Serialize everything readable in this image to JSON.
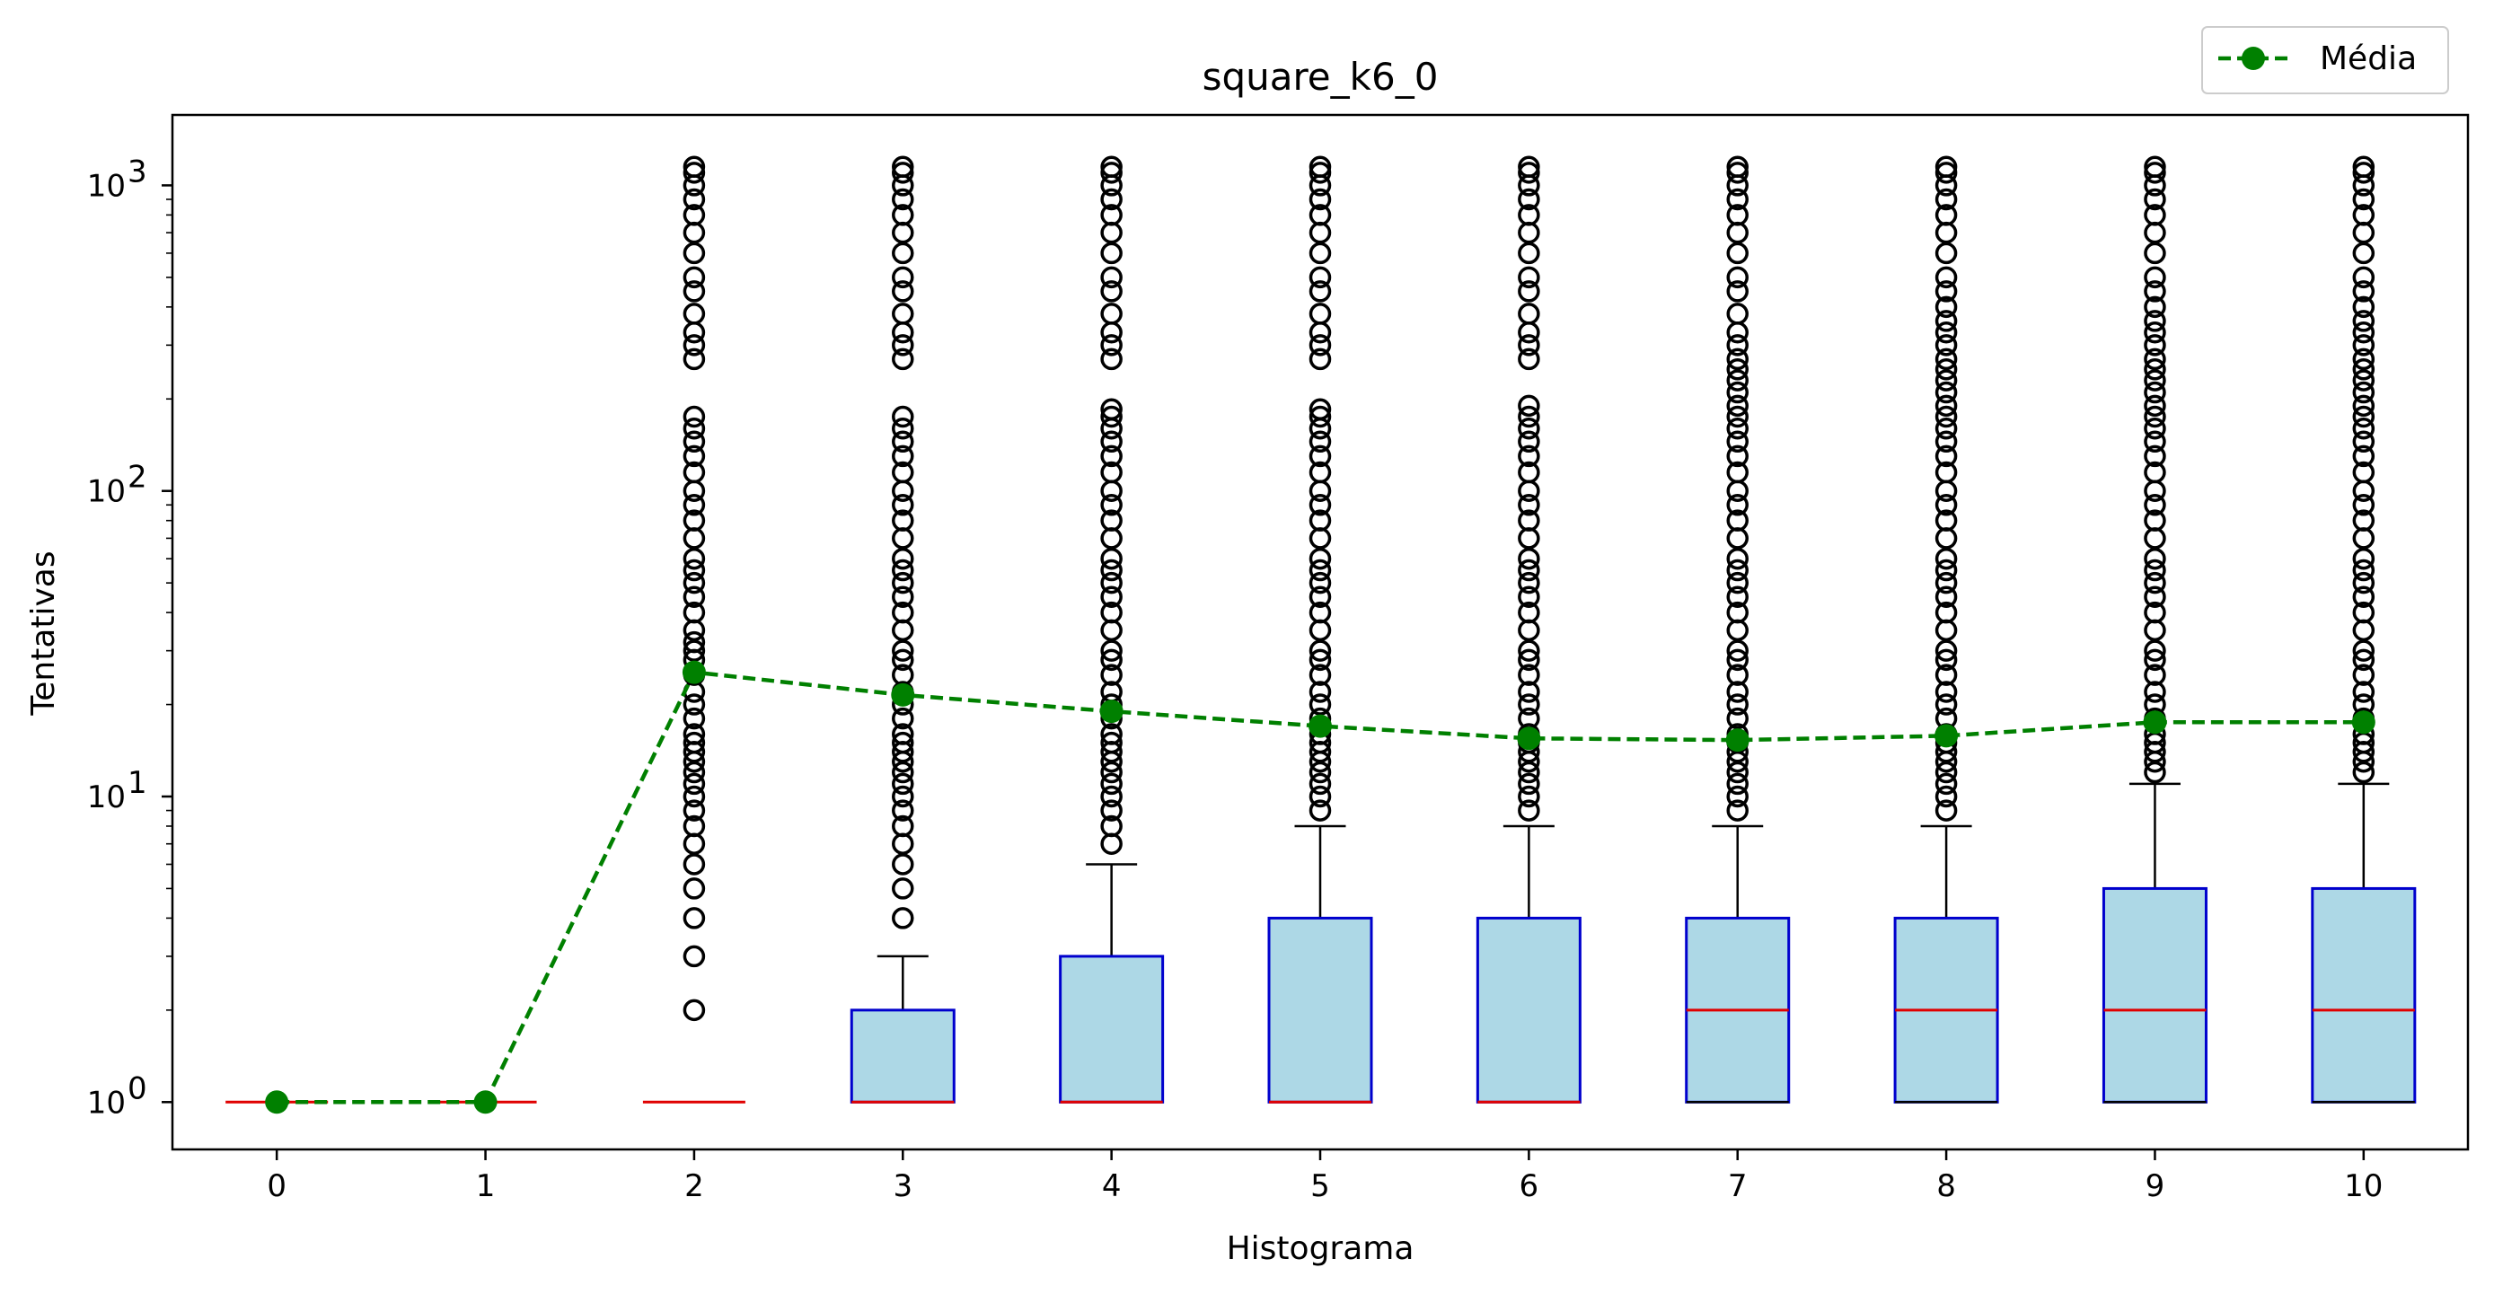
{
  "chart_data": {
    "type": "box",
    "title": "square_k6_0",
    "xlabel": "Histograma",
    "ylabel": "Tentativas",
    "yscale": "log",
    "ylim": [
      0.7,
      1700
    ],
    "xlim": [
      -0.5,
      10.5
    ],
    "categories": [
      "0",
      "1",
      "2",
      "3",
      "4",
      "5",
      "6",
      "7",
      "8",
      "9",
      "10"
    ],
    "y_ticks": [
      {
        "value": 1,
        "base": "10",
        "exp": "0"
      },
      {
        "value": 10,
        "base": "10",
        "exp": "1"
      },
      {
        "value": 100,
        "base": "10",
        "exp": "2"
      },
      {
        "value": 1000,
        "base": "10",
        "exp": "3"
      }
    ],
    "boxes": [
      {
        "q1": 1,
        "median": 1,
        "q3": 1,
        "whisker_low": 1,
        "whisker_high": 1,
        "outliers": []
      },
      {
        "q1": 1,
        "median": 1,
        "q3": 1,
        "whisker_low": 1,
        "whisker_high": 1,
        "outliers": []
      },
      {
        "q1": 1,
        "median": 1,
        "q3": 1,
        "whisker_low": 1,
        "whisker_high": 1,
        "outliers": [
          2,
          3,
          4,
          5,
          6,
          7,
          8,
          9,
          10,
          11,
          12,
          13,
          14,
          15,
          16,
          18,
          20,
          22,
          25,
          28,
          30,
          32,
          35,
          40,
          45,
          50,
          55,
          60,
          70,
          80,
          90,
          100,
          115,
          130,
          145,
          160,
          175,
          270,
          300,
          330,
          380,
          450,
          500,
          600,
          700,
          800,
          900,
          1000,
          1100,
          1150
        ]
      },
      {
        "q1": 1,
        "median": 1,
        "q3": 2,
        "whisker_low": 1,
        "whisker_high": 3,
        "outliers": [
          4,
          5,
          6,
          7,
          8,
          9,
          10,
          11,
          12,
          13,
          14,
          15,
          16,
          18,
          20,
          22,
          25,
          28,
          30,
          35,
          40,
          45,
          50,
          55,
          60,
          70,
          80,
          90,
          100,
          115,
          130,
          145,
          160,
          175,
          270,
          300,
          330,
          380,
          450,
          500,
          600,
          700,
          800,
          900,
          1000,
          1100,
          1150
        ]
      },
      {
        "q1": 1,
        "median": 1,
        "q3": 3,
        "whisker_low": 1,
        "whisker_high": 6,
        "outliers": [
          7,
          8,
          9,
          10,
          11,
          12,
          13,
          14,
          15,
          16,
          18,
          20,
          22,
          25,
          28,
          30,
          35,
          40,
          45,
          50,
          55,
          60,
          70,
          80,
          90,
          100,
          115,
          130,
          145,
          160,
          175,
          185,
          270,
          300,
          330,
          380,
          450,
          500,
          600,
          700,
          800,
          900,
          1000,
          1100,
          1150
        ]
      },
      {
        "q1": 1,
        "median": 1,
        "q3": 4,
        "whisker_low": 1,
        "whisker_high": 8,
        "outliers": [
          9,
          10,
          11,
          12,
          13,
          14,
          15,
          16,
          18,
          20,
          22,
          25,
          28,
          30,
          35,
          40,
          45,
          50,
          55,
          60,
          70,
          80,
          90,
          100,
          115,
          130,
          145,
          160,
          175,
          185,
          270,
          300,
          330,
          380,
          450,
          500,
          600,
          700,
          800,
          900,
          1000,
          1100,
          1150
        ]
      },
      {
        "q1": 1,
        "median": 1,
        "q3": 4,
        "whisker_low": 1,
        "whisker_high": 8,
        "outliers": [
          9,
          10,
          11,
          12,
          13,
          14,
          15,
          16,
          18,
          20,
          22,
          25,
          28,
          30,
          35,
          40,
          45,
          50,
          55,
          60,
          70,
          80,
          90,
          100,
          115,
          130,
          145,
          160,
          175,
          190,
          270,
          300,
          330,
          380,
          450,
          500,
          600,
          700,
          800,
          900,
          1000,
          1100,
          1150
        ]
      },
      {
        "q1": 1,
        "median": 2,
        "q3": 4,
        "whisker_low": 1,
        "whisker_high": 8,
        "outliers": [
          9,
          10,
          11,
          12,
          13,
          14,
          15,
          16,
          18,
          20,
          22,
          25,
          28,
          30,
          35,
          40,
          45,
          50,
          55,
          60,
          70,
          80,
          90,
          100,
          115,
          130,
          145,
          160,
          175,
          190,
          210,
          230,
          250,
          270,
          300,
          330,
          380,
          450,
          500,
          600,
          700,
          800,
          900,
          1000,
          1100,
          1150
        ]
      },
      {
        "q1": 1,
        "median": 2,
        "q3": 4,
        "whisker_low": 1,
        "whisker_high": 8,
        "outliers": [
          9,
          10,
          11,
          12,
          13,
          14,
          15,
          16,
          18,
          20,
          22,
          25,
          28,
          30,
          35,
          40,
          45,
          50,
          55,
          60,
          70,
          80,
          90,
          100,
          115,
          130,
          145,
          160,
          175,
          190,
          210,
          230,
          250,
          270,
          300,
          330,
          360,
          400,
          450,
          500,
          600,
          700,
          800,
          900,
          1000,
          1100,
          1150
        ]
      },
      {
        "q1": 1,
        "median": 2,
        "q3": 5,
        "whisker_low": 1,
        "whisker_high": 11,
        "outliers": [
          12,
          13,
          14,
          15,
          16,
          18,
          20,
          22,
          25,
          28,
          30,
          35,
          40,
          45,
          50,
          55,
          60,
          70,
          80,
          90,
          100,
          115,
          130,
          145,
          160,
          175,
          190,
          210,
          230,
          250,
          270,
          300,
          330,
          360,
          400,
          450,
          500,
          600,
          700,
          800,
          900,
          1000,
          1100,
          1150
        ]
      },
      {
        "q1": 1,
        "median": 2,
        "q3": 5,
        "whisker_low": 1,
        "whisker_high": 11,
        "outliers": [
          12,
          13,
          14,
          15,
          16,
          18,
          20,
          22,
          25,
          28,
          30,
          35,
          40,
          45,
          50,
          55,
          60,
          70,
          80,
          90,
          100,
          115,
          130,
          145,
          160,
          175,
          190,
          210,
          230,
          250,
          270,
          300,
          330,
          360,
          400,
          450,
          500,
          600,
          700,
          800,
          900,
          1000,
          1100,
          1150
        ]
      }
    ],
    "series": [
      {
        "name": "Média",
        "values": [
          1,
          1,
          25.5,
          21.5,
          19,
          17,
          15.5,
          15.3,
          15.8,
          17.5,
          17.5
        ]
      }
    ],
    "legend_position": "top-right (outside axes)",
    "colors": {
      "box_fill": "#add8e6",
      "box_edge": "#0000cd",
      "median": "#e00000",
      "mean": "#008000",
      "outlier_edge": "#000000",
      "whisker": "#000000"
    }
  }
}
